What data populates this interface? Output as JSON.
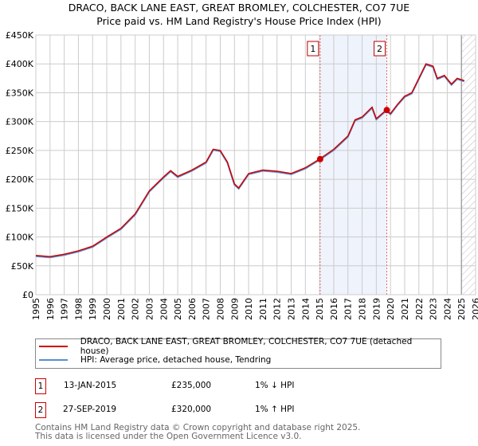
{
  "chart_data": {
    "type": "line",
    "title": "DRACO, BACK LANE EAST, GREAT BROMLEY, COLCHESTER, CO7 7UE",
    "subtitle": "Price paid vs. HM Land Registry's House Price Index (HPI)",
    "xlim": [
      1995,
      2026
    ],
    "ylim": [
      0,
      450000
    ],
    "yticks": [
      0,
      50000,
      100000,
      150000,
      200000,
      250000,
      300000,
      350000,
      400000,
      450000
    ],
    "ytick_labels": [
      "£0",
      "£50K",
      "£100K",
      "£150K",
      "£200K",
      "£250K",
      "£300K",
      "£350K",
      "£400K",
      "£450K"
    ],
    "xtick_labels": [
      "1995",
      "1996",
      "1997",
      "1998",
      "1999",
      "2000",
      "2001",
      "2002",
      "2003",
      "2004",
      "2005",
      "2006",
      "2007",
      "2008",
      "2009",
      "2010",
      "2011",
      "2012",
      "2013",
      "2014",
      "2015",
      "2016",
      "2017",
      "2018",
      "2019",
      "2020",
      "2021",
      "2022",
      "2023",
      "2024",
      "2025",
      "2026"
    ],
    "grid": true,
    "series": [
      {
        "name": "DRACO, BACK LANE EAST, GREAT BROMLEY, COLCHESTER, CO7 7UE (detached house)",
        "color": "#cc0000",
        "x": [
          1995,
          1996,
          1997,
          1998,
          1999,
          2000,
          2001,
          2002,
          2003,
          2004,
          2004.5,
          2005,
          2006,
          2007,
          2007.5,
          2008,
          2008.5,
          2009,
          2009.3,
          2010,
          2011,
          2012,
          2013,
          2014,
          2015,
          2016,
          2017,
          2017.5,
          2018,
          2018.7,
          2019,
          2019.7,
          2020,
          2020.5,
          2021,
          2021.5,
          2022,
          2022.5,
          2023,
          2023.3,
          2023.8,
          2024.3,
          2024.7,
          2025.2
        ],
        "y": [
          68000,
          66000,
          70000,
          76000,
          84000,
          100000,
          115000,
          140000,
          180000,
          204000,
          215000,
          205000,
          216000,
          230000,
          252000,
          250000,
          230000,
          192000,
          185000,
          210000,
          216000,
          214000,
          210000,
          220000,
          235000,
          252000,
          275000,
          303000,
          308000,
          325000,
          305000,
          320000,
          314000,
          330000,
          344000,
          350000,
          375000,
          400000,
          396000,
          375000,
          380000,
          365000,
          375000,
          371000
        ]
      },
      {
        "name": "HPI: Average price, detached house, Tendring",
        "color": "#5b8fd0"
      }
    ],
    "sales": [
      {
        "label": "1",
        "date": "13-JAN-2015",
        "x": 2015.04,
        "price": "£235,000",
        "value": 235000,
        "hpi": "1% ↓ HPI"
      },
      {
        "label": "2",
        "date": "27-SEP-2019",
        "x": 2019.74,
        "price": "£320,000",
        "value": 320000,
        "hpi": "1% ↑ HPI"
      }
    ],
    "forecast_start": 2025.0
  },
  "footer": [
    "Contains HM Land Registry data © Crown copyright and database right 2025.",
    "This data is licensed under the Open Government Licence v3.0."
  ]
}
